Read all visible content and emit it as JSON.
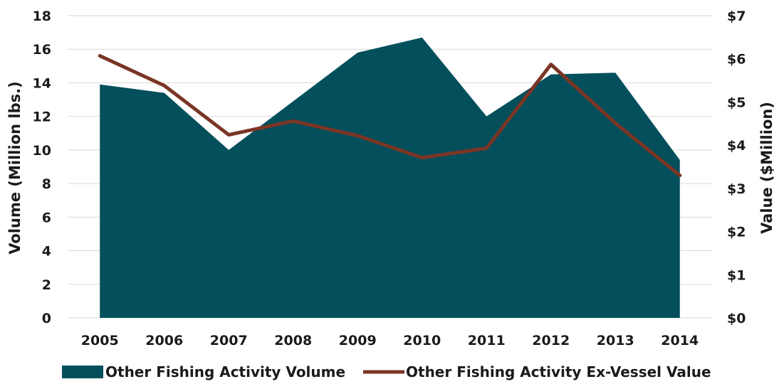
{
  "chart_data": {
    "type": "area",
    "categories": [
      "2005",
      "2006",
      "2007",
      "2008",
      "2009",
      "2010",
      "2011",
      "2012",
      "2013",
      "2014"
    ],
    "series": [
      {
        "name": "Other Fishing Activity Volume",
        "type": "area",
        "axis": "left",
        "color": "#034f5b",
        "values": [
          13.9,
          13.4,
          10.0,
          12.9,
          15.8,
          16.7,
          12.0,
          14.5,
          14.6,
          9.4
        ]
      },
      {
        "name": "Other Fishing Activity Ex-Vessel Value",
        "type": "line",
        "axis": "right",
        "color": "#7b3525",
        "values": [
          6.07,
          5.38,
          4.24,
          4.56,
          4.22,
          3.71,
          3.93,
          5.87,
          4.51,
          3.3
        ]
      }
    ],
    "ylabel_left": "Volume (Million lbs.)",
    "ylabel_right": "Value ($Million)",
    "ylim_left": [
      0,
      18
    ],
    "yticks_left": [
      "0",
      "2",
      "4",
      "6",
      "8",
      "10",
      "12",
      "14",
      "16",
      "18"
    ],
    "ylim_right": [
      0,
      7
    ],
    "yticks_right": [
      "$0",
      "$1",
      "$2",
      "$3",
      "$4",
      "$5",
      "$6",
      "$7"
    ],
    "grid": true,
    "legend_position": "bottom"
  }
}
